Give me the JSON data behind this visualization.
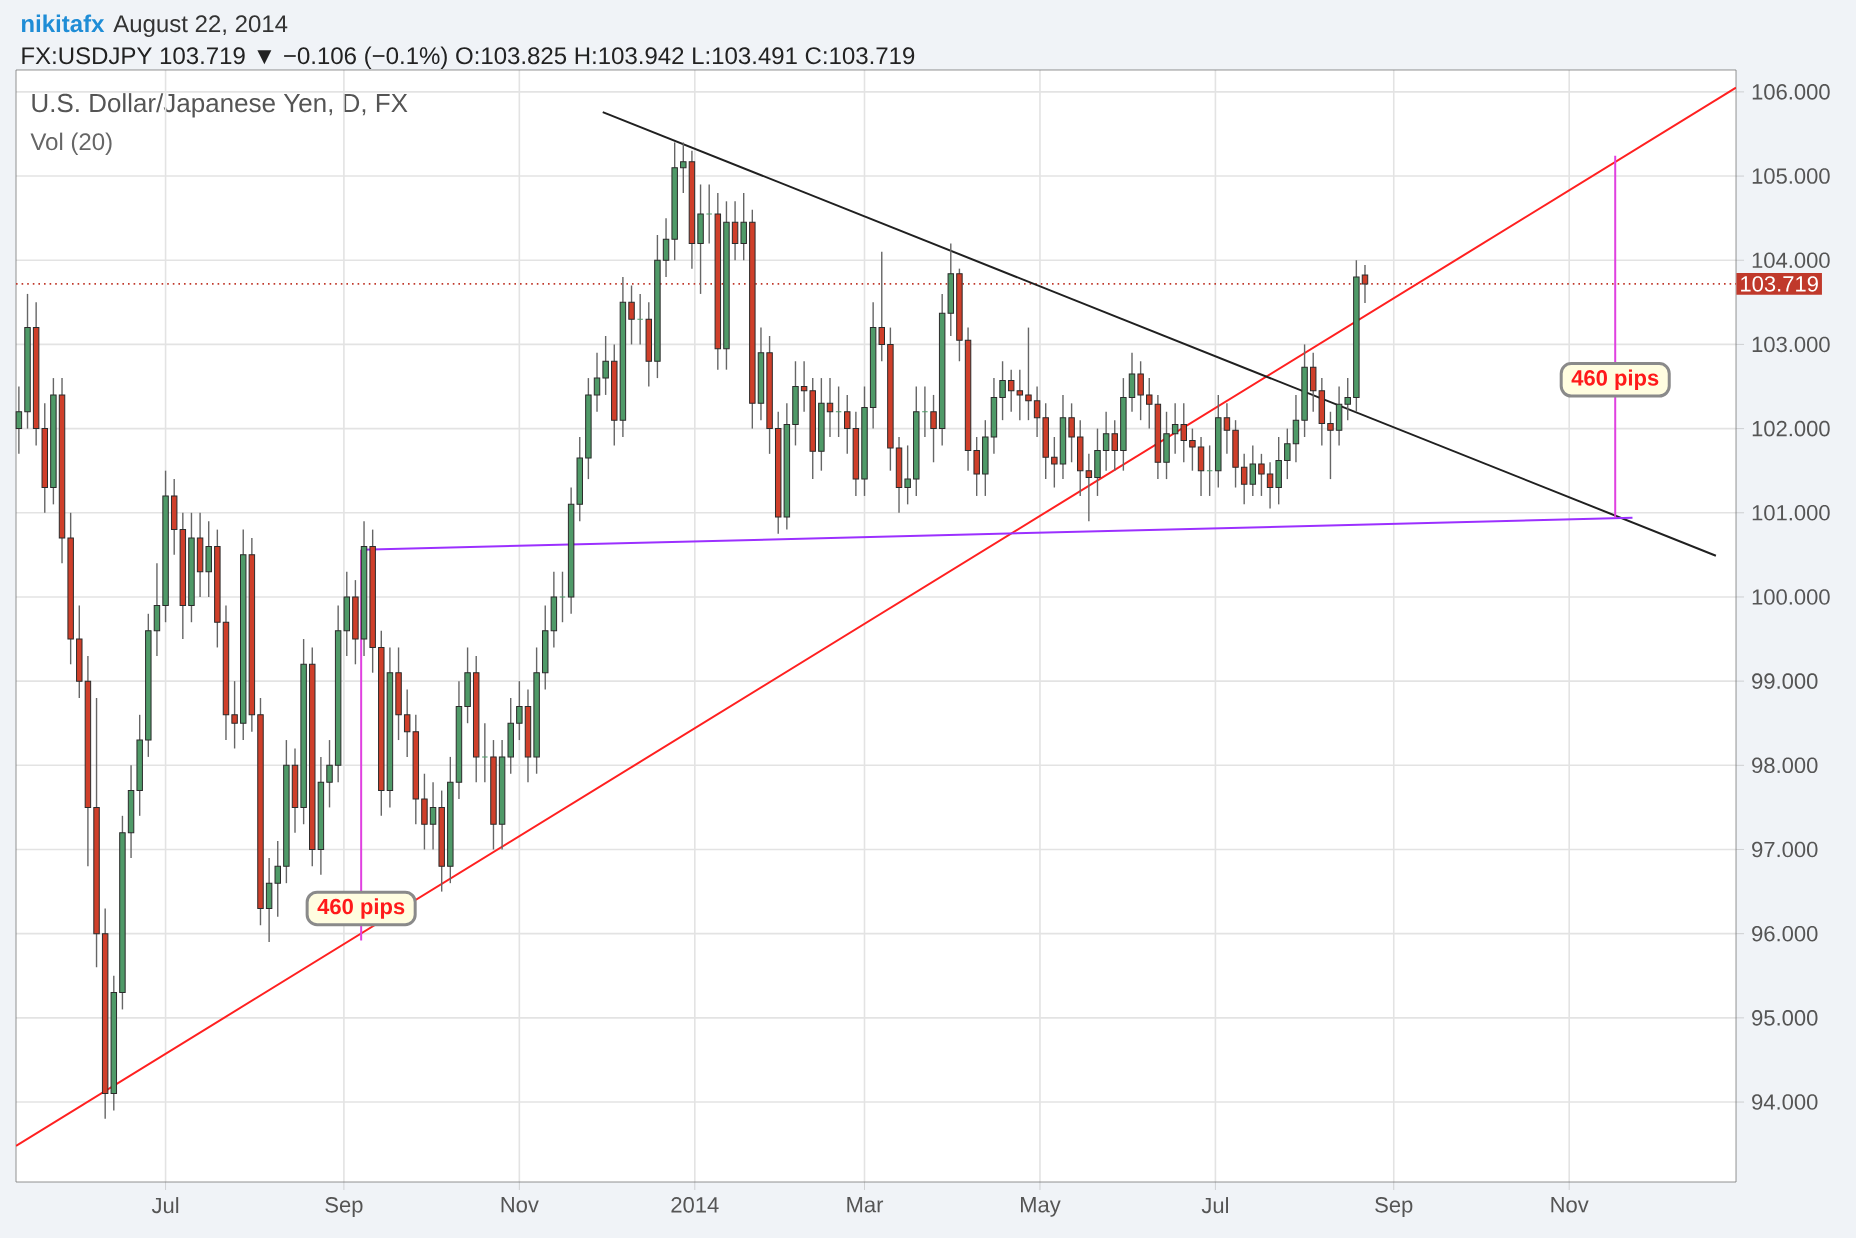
{
  "chart_data": {
    "type": "candlestick",
    "title": "U.S. Dollar/Japanese Yen, D, FX",
    "subtitle": "Vol (20)",
    "annotations": [
      "nikitafx",
      "August 22, 2014",
      "FX:USDJPY 103.719 ▼ −0.106 (−0.1%) O:103.825 H:103.942 L:103.491 C:103.719",
      {
        "text": "460 pips",
        "x": "2013-09-07",
        "y": 96.3
      },
      {
        "text": "460 pips",
        "x": "2014-11-17",
        "y": 102.58
      }
    ],
    "colors": [
      "#4f9a68",
      "#4f9a68",
      "#cf3f2a",
      "#cf3f2a",
      "#4f9a68",
      "#cf3f2a",
      "#cf3f2a",
      "#cf3f2a",
      "#cf3f2a",
      "#cf3f2a",
      "#cf3f2a",
      "#4f9a68",
      "#4f9a68",
      "#4f9a68",
      "#4f9a68",
      "#4f9a68",
      "#4f9a68",
      "#4f9a68",
      "#cf3f2a",
      "#cf3f2a",
      "#4f9a68",
      "#cf3f2a",
      "#4f9a68",
      "#cf3f2a",
      "#cf3f2a",
      "#cf3f2a",
      "#4f9a68",
      "#cf3f2a",
      "#cf3f2a",
      "#4f9a68",
      "#4f9a68",
      "#4f9a68",
      "#cf3f2a",
      "#4f9a68",
      "#cf3f2a",
      "#4f9a68",
      "#4f9a68",
      "#4f9a68",
      "#4f9a68",
      "#cf3f2a",
      "#4f9a68",
      "#cf3f2a",
      "#cf3f2a",
      "#4f9a68",
      "#cf3f2a",
      "#cf3f2a",
      "#cf3f2a",
      "#cf3f2a",
      "#4f9a68",
      "#cf3f2a",
      "#4f9a68",
      "#4f9a68",
      "#4f9a68",
      "#cf3f2a",
      "#4f9a68",
      "#cf3f2a",
      "#4f9a68",
      "#4f9a68",
      "#4f9a68",
      "#cf3f2a",
      "#4f9a68",
      "#4f9a68",
      "#4f9a68",
      "#4f9a68",
      "#4f9a68",
      "#4f9a68",
      "#4f9a68",
      "#4f9a68",
      "#4f9a68",
      "#cf3f2a",
      "#4f9a68",
      "#cf3f2a",
      "#4f9a68",
      "#cf3f2a",
      "#4f9a68",
      "#4f9a68",
      "#4f9a68",
      "#4f9a68",
      "#cf3f2a",
      "#4f9a68",
      "#4f9a68",
      "#cf3f2a",
      "#4f9a68",
      "#cf3f2a",
      "#4f9a68",
      "#cf3f2a",
      "#4f9a68",
      "#cf3f2a",
      "#cf3f2a",
      "#4f9a68",
      "#4f9a68",
      "#cf3f2a",
      "#cf3f2a",
      "#4f9a68",
      "#cf3f2a",
      "#4f9a68",
      "#cf3f2a",
      "#cf3f2a",
      "#4f9a68",
      "#4f9a68",
      "#cf3f2a",
      "#cf3f2a",
      "#cf3f2a",
      "#4f9a68",
      "#4f9a68",
      "#4f9a68",
      "#cf3f2a",
      "#4f9a68",
      "#4f9a68",
      "#cf3f2a",
      "#cf3f2a",
      "#cf3f2a",
      "#4f9a68",
      "#4f9a68",
      "#4f9a68",
      "#cf3f2a",
      "#cf3f2a",
      "#cf3f2a",
      "#cf3f2a",
      "#cf3f2a",
      "#cf3f2a",
      "#4f9a68",
      "#cf3f2a",
      "#cf3f2a",
      "#cf3f2a",
      "#4f9a68",
      "#4f9a68",
      "#cf3f2a",
      "#4f9a68",
      "#4f9a68",
      "#cf3f2a",
      "#cf3f2a",
      "#cf3f2a",
      "#4f9a68",
      "#4f9a68",
      "#cf3f2a",
      "#cf3f2a",
      "#cf3f2a",
      "#4f9a68",
      "#4f9a68",
      "#cf3f2a",
      "#cf3f2a",
      "#cf3f2a",
      "#4f9a68",
      "#cf3f2a",
      "#cf3f2a",
      "#4f9a68",
      "#4f9a68",
      "#4f9a68",
      "#4f9a68",
      "#cf3f2a",
      "#cf3f2a",
      "#cf3f2a",
      "#4f9a68",
      "#4f9a68",
      "#4f9a68",
      "#cf3f2a"
    ],
    "x": [
      "2013-05-11",
      "2013-05-14",
      "2013-05-17",
      "2013-05-20",
      "2013-05-23",
      "2013-05-26",
      "2013-05-29",
      "2013-06-01",
      "2013-06-04",
      "2013-06-07",
      "2013-06-10",
      "2013-06-13",
      "2013-06-16",
      "2013-06-19",
      "2013-06-22",
      "2013-06-25",
      "2013-06-28",
      "2013-07-01",
      "2013-07-04",
      "2013-07-07",
      "2013-07-10",
      "2013-07-13",
      "2013-07-16",
      "2013-07-19",
      "2013-07-22",
      "2013-07-25",
      "2013-07-28",
      "2013-07-31",
      "2013-08-03",
      "2013-08-06",
      "2013-08-09",
      "2013-08-12",
      "2013-08-15",
      "2013-08-18",
      "2013-08-21",
      "2013-08-24",
      "2013-08-27",
      "2013-08-30",
      "2013-09-02",
      "2013-09-05",
      "2013-09-08",
      "2013-09-11",
      "2013-09-14",
      "2013-09-17",
      "2013-09-20",
      "2013-09-23",
      "2013-09-26",
      "2013-09-29",
      "2013-10-02",
      "2013-10-05",
      "2013-10-08",
      "2013-10-11",
      "2013-10-14",
      "2013-10-17",
      "2013-10-20",
      "2013-10-23",
      "2013-10-26",
      "2013-10-29",
      "2013-11-01",
      "2013-11-04",
      "2013-11-07",
      "2013-11-10",
      "2013-11-13",
      "2013-11-16",
      "2013-11-19",
      "2013-11-22",
      "2013-11-25",
      "2013-11-28",
      "2013-12-01",
      "2013-12-04",
      "2013-12-07",
      "2013-12-10",
      "2013-12-13",
      "2013-12-16",
      "2013-12-19",
      "2013-12-22",
      "2013-12-25",
      "2013-12-28",
      "2013-12-31",
      "2014-01-03",
      "2014-01-06",
      "2014-01-09",
      "2014-01-12",
      "2014-01-15",
      "2014-01-18",
      "2014-01-21",
      "2014-01-24",
      "2014-01-27",
      "2014-01-30",
      "2014-02-02",
      "2014-02-05",
      "2014-02-08",
      "2014-02-11",
      "2014-02-14",
      "2014-02-17",
      "2014-02-20",
      "2014-02-23",
      "2014-02-26",
      "2014-03-01",
      "2014-03-04",
      "2014-03-07",
      "2014-03-10",
      "2014-03-13",
      "2014-03-16",
      "2014-03-19",
      "2014-03-22",
      "2014-03-25",
      "2014-03-28",
      "2014-03-31",
      "2014-04-03",
      "2014-04-06",
      "2014-04-09",
      "2014-04-12",
      "2014-04-15",
      "2014-04-18",
      "2014-04-21",
      "2014-04-24",
      "2014-04-27",
      "2014-04-30",
      "2014-05-03",
      "2014-05-06",
      "2014-05-09",
      "2014-05-12",
      "2014-05-15",
      "2014-05-18",
      "2014-05-21",
      "2014-05-24",
      "2014-05-27",
      "2014-05-30",
      "2014-06-02",
      "2014-06-05",
      "2014-06-08",
      "2014-06-11",
      "2014-06-14",
      "2014-06-17",
      "2014-06-20",
      "2014-06-23",
      "2014-06-26",
      "2014-06-29",
      "2014-07-02",
      "2014-07-05",
      "2014-07-08",
      "2014-07-11",
      "2014-07-14",
      "2014-07-17",
      "2014-07-20",
      "2014-07-23",
      "2014-07-26",
      "2014-07-29",
      "2014-08-01",
      "2014-08-04",
      "2014-08-07",
      "2014-08-10",
      "2014-08-13",
      "2014-08-16",
      "2014-08-19",
      "2014-08-22"
    ],
    "ohlc": [
      [
        102.0,
        102.5,
        101.7,
        102.2
      ],
      [
        102.2,
        103.6,
        102.0,
        103.2
      ],
      [
        103.2,
        103.5,
        101.8,
        102.0
      ],
      [
        102.0,
        102.3,
        101.0,
        101.3
      ],
      [
        101.3,
        102.6,
        101.1,
        102.4
      ],
      [
        102.4,
        102.6,
        100.4,
        100.7
      ],
      [
        100.7,
        101.0,
        99.2,
        99.5
      ],
      [
        99.5,
        99.9,
        98.8,
        99.0
      ],
      [
        99.0,
        99.3,
        96.8,
        97.5
      ],
      [
        97.5,
        98.8,
        95.6,
        96.0
      ],
      [
        96.0,
        96.3,
        93.8,
        94.1
      ],
      [
        94.1,
        95.5,
        93.9,
        95.3
      ],
      [
        95.3,
        97.4,
        95.1,
        97.2
      ],
      [
        97.2,
        98.0,
        96.9,
        97.7
      ],
      [
        97.7,
        98.6,
        97.4,
        98.3
      ],
      [
        98.3,
        99.8,
        98.1,
        99.6
      ],
      [
        99.6,
        100.4,
        99.3,
        99.9
      ],
      [
        99.9,
        101.5,
        99.7,
        101.2
      ],
      [
        101.2,
        101.4,
        100.5,
        100.8
      ],
      [
        100.8,
        101.0,
        99.5,
        99.9
      ],
      [
        99.9,
        101.0,
        99.7,
        100.7
      ],
      [
        100.7,
        101.0,
        100.0,
        100.3
      ],
      [
        100.3,
        100.9,
        100.0,
        100.6
      ],
      [
        100.6,
        100.8,
        99.4,
        99.7
      ],
      [
        99.7,
        99.9,
        98.3,
        98.6
      ],
      [
        98.6,
        99.0,
        98.2,
        98.5
      ],
      [
        98.5,
        100.8,
        98.3,
        100.5
      ],
      [
        100.5,
        100.7,
        98.4,
        98.6
      ],
      [
        98.6,
        98.8,
        96.1,
        96.3
      ],
      [
        96.3,
        96.9,
        95.9,
        96.6
      ],
      [
        96.6,
        97.1,
        96.2,
        96.8
      ],
      [
        96.8,
        98.3,
        96.6,
        98.0
      ],
      [
        98.0,
        98.2,
        97.2,
        97.5
      ],
      [
        97.5,
        99.5,
        97.3,
        99.2
      ],
      [
        99.2,
        99.4,
        96.8,
        97.0
      ],
      [
        97.0,
        98.1,
        96.7,
        97.8
      ],
      [
        97.8,
        98.3,
        97.5,
        98.0
      ],
      [
        98.0,
        99.9,
        97.8,
        99.6
      ],
      [
        99.6,
        100.3,
        99.3,
        100.0
      ],
      [
        100.0,
        100.2,
        99.2,
        99.5
      ],
      [
        99.5,
        100.9,
        99.3,
        100.6
      ],
      [
        100.6,
        100.8,
        99.1,
        99.4
      ],
      [
        99.4,
        99.6,
        97.4,
        97.7
      ],
      [
        97.7,
        99.4,
        97.5,
        99.1
      ],
      [
        99.1,
        99.4,
        98.3,
        98.6
      ],
      [
        98.6,
        98.9,
        98.1,
        98.4
      ],
      [
        98.4,
        98.6,
        97.3,
        97.6
      ],
      [
        97.6,
        97.9,
        97.0,
        97.3
      ],
      [
        97.3,
        97.8,
        97.0,
        97.5
      ],
      [
        97.5,
        97.7,
        96.5,
        96.8
      ],
      [
        96.8,
        98.1,
        96.6,
        97.8
      ],
      [
        97.8,
        99.0,
        97.6,
        98.7
      ],
      [
        98.7,
        99.4,
        98.5,
        99.1
      ],
      [
        99.1,
        99.3,
        97.8,
        98.1
      ],
      [
        98.1,
        98.5,
        97.8,
        98.1
      ],
      [
        98.1,
        98.3,
        97.0,
        97.3
      ],
      [
        97.3,
        98.3,
        97.0,
        98.1
      ],
      [
        98.1,
        98.8,
        97.9,
        98.5
      ],
      [
        98.5,
        99.0,
        98.3,
        98.7
      ],
      [
        98.7,
        98.9,
        97.8,
        98.1
      ],
      [
        98.1,
        99.4,
        97.9,
        99.1
      ],
      [
        99.1,
        99.9,
        98.9,
        99.6
      ],
      [
        99.6,
        100.3,
        99.4,
        100.0
      ],
      [
        100.0,
        100.3,
        99.7,
        100.0
      ],
      [
        100.0,
        101.3,
        99.8,
        101.1
      ],
      [
        101.1,
        101.9,
        100.9,
        101.65
      ],
      [
        101.65,
        102.6,
        101.4,
        102.4
      ],
      [
        102.4,
        102.9,
        102.2,
        102.6
      ],
      [
        102.6,
        103.1,
        102.4,
        102.8
      ],
      [
        102.8,
        103.0,
        101.8,
        102.1
      ],
      [
        102.1,
        103.8,
        101.9,
        103.5
      ],
      [
        103.5,
        103.7,
        103.0,
        103.3
      ],
      [
        103.3,
        103.6,
        103.0,
        103.3
      ],
      [
        103.3,
        103.5,
        102.5,
        102.8
      ],
      [
        102.8,
        104.3,
        102.6,
        104.0
      ],
      [
        104.0,
        104.5,
        103.8,
        104.25
      ],
      [
        104.25,
        105.4,
        104.0,
        105.1
      ],
      [
        105.1,
        105.4,
        104.8,
        105.17
      ],
      [
        105.17,
        105.3,
        103.9,
        104.2
      ],
      [
        104.2,
        104.9,
        103.6,
        104.55
      ],
      [
        104.55,
        104.9,
        104.2,
        104.55
      ],
      [
        104.55,
        104.8,
        102.7,
        102.95
      ],
      [
        102.95,
        104.7,
        102.7,
        104.45
      ],
      [
        104.45,
        104.7,
        104.0,
        104.2
      ],
      [
        104.2,
        104.8,
        104.0,
        104.45
      ],
      [
        104.45,
        104.6,
        102.0,
        102.3
      ],
      [
        102.3,
        103.2,
        102.1,
        102.9
      ],
      [
        102.9,
        103.1,
        101.7,
        102.0
      ],
      [
        102.0,
        102.2,
        100.75,
        100.95
      ],
      [
        100.95,
        102.3,
        100.8,
        102.05
      ],
      [
        102.05,
        102.8,
        101.8,
        102.5
      ],
      [
        102.5,
        102.8,
        102.2,
        102.45
      ],
      [
        102.45,
        102.6,
        101.4,
        101.73
      ],
      [
        101.73,
        102.6,
        101.5,
        102.3
      ],
      [
        102.3,
        102.6,
        101.9,
        102.2
      ],
      [
        102.2,
        102.5,
        101.9,
        102.2
      ],
      [
        102.2,
        102.4,
        101.7,
        102.0
      ],
      [
        102.0,
        102.2,
        101.2,
        101.4
      ],
      [
        101.4,
        102.5,
        101.2,
        102.25
      ],
      [
        102.25,
        103.5,
        102.0,
        103.2
      ],
      [
        103.2,
        104.1,
        102.8,
        103.0
      ],
      [
        103.0,
        103.2,
        101.5,
        101.77
      ],
      [
        101.77,
        101.9,
        101.0,
        101.3
      ],
      [
        101.3,
        101.8,
        101.1,
        101.4
      ],
      [
        101.4,
        102.5,
        101.2,
        102.2
      ],
      [
        102.2,
        102.5,
        101.9,
        102.2
      ],
      [
        102.2,
        102.4,
        101.6,
        102.0
      ],
      [
        102.0,
        103.6,
        101.8,
        103.37
      ],
      [
        103.37,
        104.2,
        103.1,
        103.84
      ],
      [
        103.84,
        103.9,
        102.8,
        103.05
      ],
      [
        103.05,
        103.2,
        101.5,
        101.74
      ],
      [
        101.74,
        101.9,
        101.2,
        101.46
      ],
      [
        101.46,
        102.1,
        101.2,
        101.9
      ],
      [
        101.9,
        102.6,
        101.7,
        102.37
      ],
      [
        102.37,
        102.8,
        102.1,
        102.57
      ],
      [
        102.57,
        102.7,
        102.2,
        102.45
      ],
      [
        102.45,
        102.7,
        102.1,
        102.4
      ],
      [
        102.4,
        103.2,
        102.1,
        102.33
      ],
      [
        102.33,
        102.5,
        101.9,
        102.13
      ],
      [
        102.13,
        102.3,
        101.4,
        101.66
      ],
      [
        101.66,
        101.9,
        101.3,
        101.58
      ],
      [
        101.58,
        102.4,
        101.4,
        102.13
      ],
      [
        102.13,
        102.3,
        101.6,
        101.9
      ],
      [
        101.9,
        102.1,
        101.2,
        101.5
      ],
      [
        101.5,
        101.7,
        100.9,
        101.42
      ],
      [
        101.42,
        102.0,
        101.2,
        101.74
      ],
      [
        101.74,
        102.2,
        101.5,
        101.94
      ],
      [
        101.94,
        102.1,
        101.5,
        101.74
      ],
      [
        101.74,
        102.6,
        101.5,
        102.37
      ],
      [
        102.37,
        102.9,
        102.2,
        102.65
      ],
      [
        102.65,
        102.8,
        102.1,
        102.4
      ],
      [
        102.4,
        102.6,
        102.0,
        102.29
      ],
      [
        102.29,
        102.4,
        101.4,
        101.6
      ],
      [
        101.6,
        102.2,
        101.4,
        101.94
      ],
      [
        101.94,
        102.3,
        101.7,
        102.05
      ],
      [
        102.05,
        102.3,
        101.6,
        101.86
      ],
      [
        101.86,
        102.0,
        101.5,
        101.78
      ],
      [
        101.78,
        101.9,
        101.2,
        101.5
      ],
      [
        101.5,
        101.8,
        101.2,
        101.5
      ],
      [
        101.5,
        102.4,
        101.3,
        102.13
      ],
      [
        102.13,
        102.3,
        101.7,
        101.98
      ],
      [
        101.98,
        102.1,
        101.3,
        101.54
      ],
      [
        101.54,
        101.7,
        101.1,
        101.34
      ],
      [
        101.34,
        101.8,
        101.2,
        101.58
      ],
      [
        101.58,
        101.7,
        101.2,
        101.46
      ],
      [
        101.46,
        101.6,
        101.05,
        101.3
      ],
      [
        101.3,
        101.9,
        101.1,
        101.62
      ],
      [
        101.62,
        102.0,
        101.4,
        101.82
      ],
      [
        101.82,
        102.4,
        101.6,
        102.1
      ],
      [
        102.1,
        103.0,
        101.9,
        102.73
      ],
      [
        102.73,
        102.9,
        102.2,
        102.45
      ],
      [
        102.45,
        102.6,
        101.8,
        102.06
      ],
      [
        102.06,
        102.2,
        101.4,
        101.98
      ],
      [
        101.98,
        102.5,
        101.8,
        102.29
      ],
      [
        102.29,
        102.6,
        102.1,
        102.37
      ],
      [
        102.37,
        104.0,
        102.2,
        103.8
      ],
      [
        103.825,
        103.942,
        103.491,
        103.719
      ]
    ],
    "series": [
      {
        "type": "line",
        "color": "#ff2020",
        "x": [
          "2013-05-10",
          "2014-12-29"
        ],
        "values": [
          93.48,
          106.05
        ]
      },
      {
        "type": "line",
        "color": "#202020",
        "x": [
          "2013-11-30",
          "2014-12-22"
        ],
        "values": [
          105.76,
          100.49
        ]
      },
      {
        "type": "line",
        "color": "#9b30ff",
        "x": [
          "2013-09-07",
          "2014-11-23"
        ],
        "values": [
          100.56,
          100.94
        ]
      },
      {
        "type": "line",
        "color": "#e040e0",
        "x": [
          "2013-09-07",
          "2013-09-07"
        ],
        "values": [
          100.56,
          95.92
        ]
      },
      {
        "type": "line",
        "color": "#e040e0",
        "x": [
          "2014-11-17",
          "2014-11-17"
        ],
        "values": [
          105.24,
          100.94
        ]
      }
    ],
    "ref_lines": [
      {
        "axis": "y",
        "value": 103.719,
        "label": "103.719",
        "color": "#c0392b",
        "line_style": "dotted"
      }
    ],
    "xlim": [
      "2013-05-10",
      "2014-12-29"
    ],
    "xticks": [
      {
        "value": "2013-07-01",
        "label": "Jul"
      },
      {
        "value": "2013-09-01",
        "label": "Sep"
      },
      {
        "value": "2013-11-01",
        "label": "Nov"
      },
      {
        "value": "2014-01-01",
        "label": "2014"
      },
      {
        "value": "2014-03-01",
        "label": "Mar"
      },
      {
        "value": "2014-05-01",
        "label": "May"
      },
      {
        "value": "2014-07-01",
        "label": "Jul"
      },
      {
        "value": "2014-09-01",
        "label": "Sep"
      },
      {
        "value": "2014-11-01",
        "label": "Nov"
      }
    ],
    "ylim": [
      93.05,
      106.26
    ],
    "yticks": [
      {
        "value": 94,
        "label": "94.000"
      },
      {
        "value": 95,
        "label": "95.000"
      },
      {
        "value": 96,
        "label": "96.000"
      },
      {
        "value": 97,
        "label": "97.000"
      },
      {
        "value": 98,
        "label": "98.000"
      },
      {
        "value": 99,
        "label": "99.000"
      },
      {
        "value": 100,
        "label": "100.000"
      },
      {
        "value": 101,
        "label": "101.000"
      },
      {
        "value": 102,
        "label": "102.000"
      },
      {
        "value": 103,
        "label": "103.000"
      },
      {
        "value": 104,
        "label": "104.000"
      },
      {
        "value": 105,
        "label": "105.000"
      },
      {
        "value": 106,
        "label": "106.000"
      }
    ],
    "grid": true
  }
}
